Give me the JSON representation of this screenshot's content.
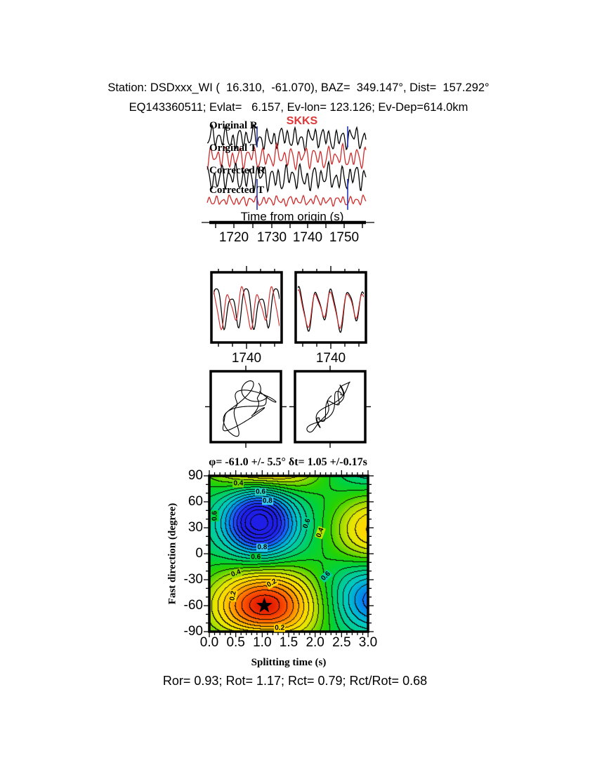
{
  "header": {
    "line1": "Station: DSDxxx_WI (  16.310,  -61.070), BAZ=  349.147°, Dist=  157.292°",
    "line2": "EQ143360511; Evlat=   6.157, Ev-lon= 123.126; Ev-Dep=614.0km"
  },
  "palette": {
    "trace_red": "#cf2b2b",
    "phase_red": "#e03636",
    "window_blue": "#2233bb",
    "ink": "#000000"
  },
  "footer": {
    "stats": "Ror= 0.93; Rot= 1.17; Rct= 0.79; Rct/Rot= 0.68"
  },
  "chart_data": [
    {
      "id": "seismograms",
      "type": "line",
      "title": "SKKS",
      "xlabel": "Time from origin (s)",
      "x_ticks": [
        "1720",
        "1730",
        "1740",
        "1750"
      ],
      "xlim": [
        1713,
        1756
      ],
      "window_s": [
        1726.3,
        1750.9
      ],
      "series": [
        {
          "name": "Original R",
          "color": "#000000"
        },
        {
          "name": "Original T",
          "color": "#cf2b2b"
        },
        {
          "name": "Corrected R",
          "color": "#000000"
        },
        {
          "name": "Corrected T",
          "color": "#cf2b2b"
        }
      ],
      "synthesis": [
        {
          "base": 37,
          "amps": [
            [
              10,
              0.64,
              0.2
            ],
            [
              5,
              0.31,
              1.4
            ],
            [
              3,
              1.07,
              2.3
            ],
            [
              2.5,
              0.13,
              4.2
            ]
          ]
        },
        {
          "base": 64,
          "amps": [
            [
              10,
              0.6,
              2.3
            ],
            [
              5.5,
              0.34,
              0.2
            ],
            [
              3,
              1.0,
              1.2
            ],
            [
              2,
              0.15,
              2.8
            ]
          ]
        },
        {
          "base": 93,
          "amps": [
            [
              12,
              0.62,
              4.6
            ],
            [
              6,
              0.33,
              2.7
            ],
            [
              3.5,
              1.04,
              0.5
            ],
            [
              2.5,
              0.14,
              1.2
            ]
          ]
        },
        {
          "base": 126,
          "amps": [
            [
              4.5,
              0.66,
              1.9
            ],
            [
              2.2,
              0.36,
              3.6
            ],
            [
              1.6,
              1.12,
              0.8
            ],
            [
              1,
              0.2,
              5.1
            ]
          ]
        }
      ]
    },
    {
      "id": "window-components",
      "type": "line",
      "boxes": [
        {
          "x_tick": 1740,
          "note": "fast/slow before correction"
        },
        {
          "x_tick": 1740,
          "note": "fast/slow after correction"
        }
      ],
      "synthesis": {
        "left": {
          "black": [
            [
              26,
              0.54,
              0.3
            ],
            [
              8,
              0.27,
              1.1
            ],
            [
              6,
              1.08,
              2.2
            ]
          ],
          "red": [
            [
              24,
              0.54,
              1.75
            ],
            [
              8,
              0.27,
              2.55
            ],
            [
              5,
              1.08,
              3.65
            ]
          ]
        },
        "right": {
          "black": [
            [
              25,
              0.5,
              0.8
            ],
            [
              9,
              0.26,
              2.4
            ],
            [
              5,
              1.02,
              1.5
            ]
          ],
          "red": [
            [
              21,
              0.5,
              0.95
            ],
            [
              8,
              0.26,
              2.55
            ],
            [
              4,
              1.02,
              1.65
            ]
          ]
        }
      }
    },
    {
      "id": "particle-motion",
      "type": "scatter",
      "boxes": [
        "original elliptical motion",
        "corrected linearized motion"
      ],
      "synthesis": {
        "left": {
          "x": [
            [
              34,
              1.0,
              0
            ],
            [
              20,
              2.3,
              1.0
            ],
            [
              9,
              4.1,
              2.0
            ]
          ],
          "y": [
            [
              34,
              0.9,
              0
            ],
            [
              17,
              2.0,
              0.6
            ],
            [
              9,
              3.7,
              1.8
            ]
          ],
          "scale": 0.72,
          "tmax": 14.5
        },
        "right": {
          "s": [
            [
              40,
              0.9,
              0
            ],
            [
              14,
              2.1,
              0.7
            ]
          ],
          "n": [
            [
              11,
              3.3,
              1.2
            ],
            [
              7,
              5.1,
              0.3
            ]
          ],
          "tmax": 14.5
        }
      }
    },
    {
      "id": "error-surface",
      "type": "heatmap",
      "title": "φ= -61.0 +/- 5.5° δt= 1.05 +/-0.17s",
      "xlabel": "Splitting time (s)",
      "ylabel": "Fast direction (degree)",
      "xlim": [
        0,
        3
      ],
      "ylim": [
        -90,
        90
      ],
      "x_ticks": [
        "0.0",
        "0.5",
        "1.0",
        "1.5",
        "2.0",
        "2.5",
        "3.0"
      ],
      "y_ticks": [
        "90",
        "60",
        "30",
        "0",
        "-30",
        "-60",
        "-90"
      ],
      "best_fit": {
        "phi_deg": -61.0,
        "phi_err_deg": 5.5,
        "dt_s": 1.05,
        "dt_err_s": 0.17
      },
      "star": {
        "x": 1.04,
        "y": -60
      },
      "contour_interval": 0.05,
      "surface_model": {
        "base": 0.6,
        "blobs": [
          {
            "amp": -0.55,
            "x": 1.05,
            "sx": 1.0,
            "y": -61,
            "sy": 44
          },
          {
            "amp": 0.55,
            "x": 0.95,
            "sx": 0.65,
            "y": 38,
            "sy": 40
          },
          {
            "amp": -0.32,
            "x": 3.15,
            "sx": 0.8,
            "y": 27,
            "sy": 42
          },
          {
            "amp": 0.3,
            "x": 3.15,
            "sx": 0.8,
            "y": -52,
            "sy": 40
          }
        ]
      },
      "colormap": [
        [
          0.0,
          180,
          0,
          0
        ],
        [
          0.07,
          230,
          32,
          0
        ],
        [
          0.15,
          255,
          90,
          0
        ],
        [
          0.23,
          255,
          160,
          0
        ],
        [
          0.31,
          255,
          215,
          0
        ],
        [
          0.38,
          230,
          230,
          0
        ],
        [
          0.45,
          150,
          220,
          0
        ],
        [
          0.52,
          40,
          210,
          0
        ],
        [
          0.58,
          0,
          210,
          60
        ],
        [
          0.66,
          0,
          205,
          145
        ],
        [
          0.74,
          0,
          200,
          200
        ],
        [
          0.82,
          0,
          150,
          230
        ],
        [
          0.9,
          30,
          80,
          255
        ],
        [
          1.0,
          30,
          30,
          230
        ]
      ],
      "contour_labels": [
        {
          "text": "0.4",
          "x": 0.55,
          "y": 81,
          "rot": 0,
          "bg": "#6fd900"
        },
        {
          "text": "0.6",
          "x": 0.97,
          "y": 71,
          "rot": 0,
          "bg": "#2ad2c8"
        },
        {
          "text": "0.8",
          "x": 1.1,
          "y": 61,
          "rot": 0,
          "bg": "#35c8f0"
        },
        {
          "text": "0.6",
          "x": 0.1,
          "y": 44,
          "rot": -90,
          "bg": "#00d23c"
        },
        {
          "text": "0.6",
          "x": 1.85,
          "y": 35,
          "rot": -70,
          "bg": "#00d08c"
        },
        {
          "text": "0.4",
          "x": 2.1,
          "y": 24,
          "rot": -70,
          "bg": "#b8e400"
        },
        {
          "text": "0.8",
          "x": 1.0,
          "y": 7,
          "rot": 0,
          "bg": "#35c8f0"
        },
        {
          "text": "0.6",
          "x": 0.88,
          "y": -4,
          "rot": 0,
          "bg": "#00d23c"
        },
        {
          "text": "0.4",
          "x": 0.5,
          "y": -23,
          "rot": -20,
          "bg": "#9ade00"
        },
        {
          "text": "0.2",
          "x": 1.18,
          "y": -34,
          "rot": -30,
          "bg": "#ffd700"
        },
        {
          "text": "0.2",
          "x": 0.45,
          "y": -49,
          "rot": -80,
          "bg": "#ffd700"
        },
        {
          "text": "0.6",
          "x": 2.2,
          "y": -26,
          "rot": -45,
          "bg": "#00cfa0"
        },
        {
          "text": "0.2",
          "x": 1.33,
          "y": -86,
          "rot": 0,
          "bg": "#ffd700"
        }
      ]
    }
  ]
}
